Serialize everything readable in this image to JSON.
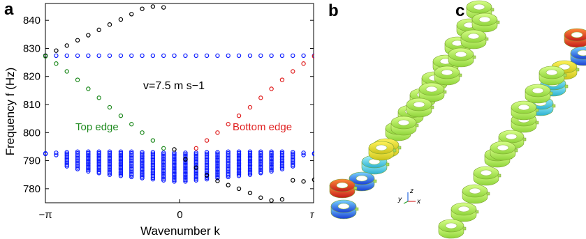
{
  "panels": {
    "a": "a",
    "b": "b",
    "c": "c"
  },
  "triad": {
    "y": "y",
    "z": "z",
    "x": "x"
  },
  "colors": {
    "bulk": "#0a1aff",
    "top_edge": "#1f8a1f",
    "bottom_edge": "#e02020",
    "outside": "#000000",
    "ring_base": "#b8ee55"
  },
  "chart_data": {
    "type": "scatter",
    "title": "",
    "xlabel": "Wavenumber k",
    "ylabel": "Frequency f (Hz)",
    "annotation": "v=7.5 m s−1",
    "xlim": [
      -3.1416,
      3.1416
    ],
    "ylim": [
      775,
      846
    ],
    "xticks": [
      -3.1416,
      0,
      3.1416
    ],
    "xtick_labels": [
      "−π",
      "0",
      "π"
    ],
    "yticks": [
      780,
      790,
      800,
      810,
      820,
      830,
      840
    ],
    "ytick_labels": [
      "780",
      "790",
      "800",
      "810",
      "820",
      "830",
      "840"
    ],
    "grid": false,
    "series": [
      {
        "name": "Top edge",
        "label": "Top edge",
        "color": "#1f8a1f",
        "x": [
          -3.14,
          -2.89,
          -2.64,
          -2.39,
          -2.14,
          -1.89,
          -1.64,
          -1.38,
          -1.13,
          -0.88,
          -0.63,
          -0.38
        ],
        "y": [
          827.2,
          824.6,
          821.8,
          818.8,
          815.6,
          812.4,
          809.0,
          806.0,
          803.0,
          800.0,
          797.2,
          794.4
        ]
      },
      {
        "name": "Bottom edge",
        "label": "Bottom edge",
        "color": "#e02020",
        "x": [
          0.38,
          0.63,
          0.88,
          1.13,
          1.38,
          1.64,
          1.89,
          2.14,
          2.39,
          2.64,
          2.89,
          3.14
        ],
        "y": [
          794.4,
          797.2,
          800.0,
          803.0,
          806.0,
          809.0,
          812.4,
          815.6,
          818.8,
          821.8,
          824.6,
          827.2
        ]
      },
      {
        "name": "",
        "color": "#000000",
        "x": [
          -3.14,
          -2.89,
          -2.64,
          -2.39,
          -2.14,
          -1.89,
          -1.64,
          -1.38,
          -1.13,
          -0.88,
          -0.63,
          -0.38,
          -0.13,
          0.13,
          0.38,
          0.63,
          0.88,
          1.13,
          1.38,
          1.64,
          1.89,
          2.14,
          2.39,
          2.64,
          2.89,
          3.14
        ],
        "y": [
          827.4,
          829.2,
          831.0,
          832.9,
          834.7,
          836.6,
          838.5,
          840.3,
          842.2,
          844.1,
          844.9,
          844.6,
          794.0,
          790.5,
          787.5,
          784.8,
          782.8,
          781.3,
          780.0,
          778.5,
          776.8,
          775.8,
          776.2,
          783.0,
          782.6,
          783.2
        ]
      },
      {
        "name": "",
        "color": "#0a1aff",
        "x": [
          -3.14,
          -2.89,
          -2.64,
          -2.39,
          -2.14,
          -1.89,
          -1.64,
          -1.38,
          -1.13,
          -0.88,
          -0.63,
          -0.38,
          -0.13,
          0.13,
          0.38,
          0.63,
          0.88,
          1.13,
          1.38,
          1.64,
          1.89,
          2.14,
          2.39,
          2.64,
          2.89,
          3.14
        ],
        "y": [
          827.4,
          827.4,
          827.4,
          827.4,
          827.4,
          827.4,
          827.4,
          827.4,
          827.4,
          827.4,
          827.4,
          827.4,
          827.4,
          827.4,
          827.4,
          827.4,
          827.4,
          827.4,
          827.4,
          827.4,
          827.4,
          827.4,
          827.4,
          827.4,
          827.4,
          827.4
        ],
        "band_low": [
          792.4,
          792.0,
          788.0,
          787.0,
          786.2,
          785.6,
          785.0,
          784.6,
          784.2,
          783.8,
          783.4,
          783.0,
          782.6,
          782.6,
          783.0,
          783.4,
          783.8,
          784.2,
          784.6,
          785.0,
          785.6,
          786.2,
          787.0,
          788.0,
          792.0,
          792.4
        ],
        "band_high": [
          792.6,
          792.8,
          793.0,
          793.2,
          793.2,
          793.2,
          793.2,
          793.2,
          793.2,
          793.0,
          793.0,
          792.8,
          792.8,
          792.8,
          792.8,
          793.0,
          793.0,
          793.2,
          793.2,
          793.2,
          793.2,
          793.2,
          793.2,
          793.0,
          792.8,
          792.6
        ]
      }
    ]
  }
}
